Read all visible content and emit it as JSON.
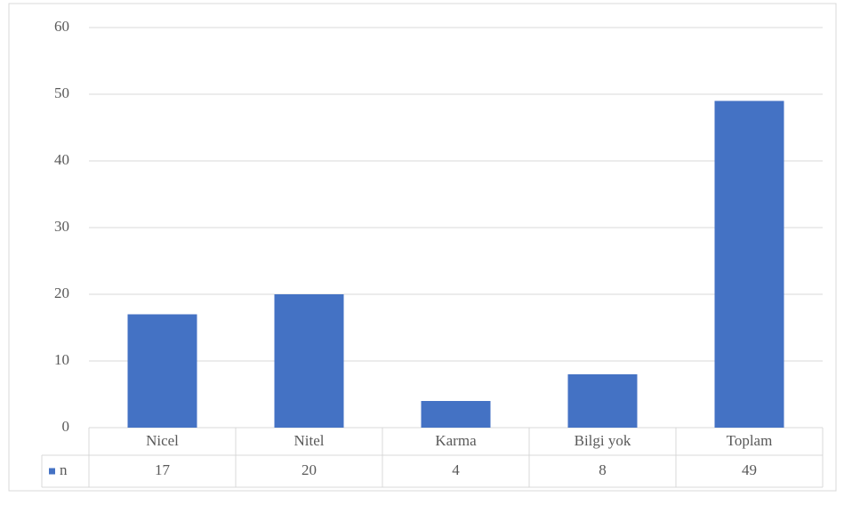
{
  "chart_data": {
    "type": "bar",
    "categories": [
      "Nicel",
      "Nitel",
      "Karma",
      "Bilgi yok",
      "Toplam"
    ],
    "series": [
      {
        "name": "n",
        "color": "#4472c4",
        "values": [
          17,
          20,
          4,
          8,
          49
        ]
      }
    ],
    "ylim": [
      0,
      60
    ],
    "yticks": [
      0,
      10,
      20,
      30,
      40,
      50,
      60
    ],
    "grid": true,
    "data_table": true
  }
}
